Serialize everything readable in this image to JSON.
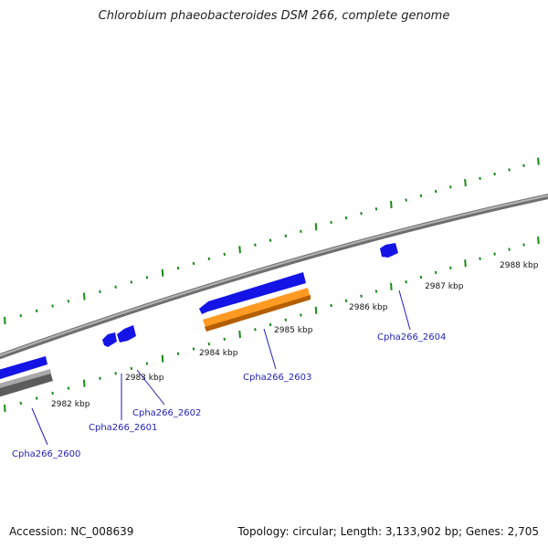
{
  "title": "Chlorobium phaeobacteroides DSM 266, complete genome",
  "accession": "Accession: NC_008639",
  "stats": "Topology: circular; Length: 3,133,902 bp; Genes: 2,705",
  "colors": {
    "backbone": "#8a8a8a",
    "tick": "#1a8a1a",
    "gene_blue": "#1414e6",
    "gene_orange": "#ff8c14",
    "gene_gray": "#6e6e6e",
    "label_blue": "#1f1fb5"
  },
  "kbp_labels": [
    "2982 kbp",
    "2983 kbp",
    "2984 kbp",
    "2985 kbp",
    "2986 kbp",
    "2987 kbp",
    "2988 kbp"
  ],
  "genes": [
    {
      "name": "Cpha266_2600",
      "color": "gene_blue"
    },
    {
      "name": "Cpha266_2601",
      "color": "gene_blue"
    },
    {
      "name": "Cpha266_2602",
      "color": "gene_blue"
    },
    {
      "name": "Cpha266_2603",
      "color": "gene_blue"
    },
    {
      "name": "Cpha266_2604",
      "color": "gene_blue"
    }
  ]
}
